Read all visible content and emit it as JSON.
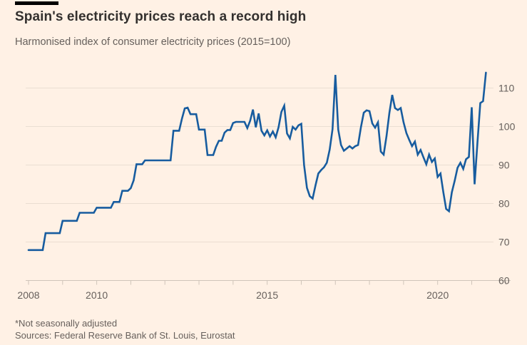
{
  "header": {
    "title": "Spain's electricity prices reach a record high",
    "subtitle": "Harmonised index of consumer electricity prices (2015=100)"
  },
  "footer": {
    "note": "*Not seasonally adjusted",
    "sources": "Sources: Federal Reserve Bank of St. Louis, Eurostat"
  },
  "colors": {
    "background": "#FFF1E5",
    "line": "#175C9F",
    "grid": "#EADED2",
    "axis": "#CFC4B9",
    "title_text": "#33302E",
    "muted_text": "#66605C",
    "topbar": "#000000"
  },
  "chart_data": {
    "type": "line",
    "title": "Spain's electricity prices reach a record high",
    "subtitle": "Harmonised index of consumer electricity prices (2015=100)",
    "frequency": "monthly",
    "x_start": "2008-01",
    "x_end": "2021-06",
    "ylim": [
      60,
      115
    ],
    "grid": true,
    "y_ticks": [
      110,
      100,
      90,
      80,
      70,
      60
    ],
    "x_tick_years": [
      2008,
      2009,
      2010,
      2011,
      2012,
      2013,
      2014,
      2015,
      2016,
      2017,
      2018,
      2019,
      2020,
      2021,
      2022
    ],
    "x_labeled_ticks": [
      {
        "year": 2008,
        "label": "2008"
      },
      {
        "year": 2010,
        "label": "2010"
      },
      {
        "year": 2015,
        "label": "2015"
      },
      {
        "year": 2020,
        "label": "2020"
      }
    ],
    "series": [
      {
        "name": "Spain harmonised index of consumer electricity prices",
        "values": [
          67.9,
          67.9,
          67.9,
          67.9,
          67.9,
          67.9,
          72.3,
          72.3,
          72.3,
          72.3,
          72.3,
          72.3,
          75.5,
          75.5,
          75.5,
          75.5,
          75.5,
          75.5,
          77.6,
          77.6,
          77.6,
          77.6,
          77.6,
          77.6,
          78.9,
          78.9,
          78.9,
          78.9,
          78.9,
          78.9,
          80.4,
          80.4,
          80.4,
          83.3,
          83.3,
          83.3,
          84.0,
          86.0,
          90.2,
          90.2,
          90.2,
          91.2,
          91.2,
          91.2,
          91.2,
          91.2,
          91.2,
          91.2,
          91.2,
          91.2,
          91.2,
          98.9,
          98.9,
          98.9,
          102.0,
          104.7,
          104.9,
          103.2,
          103.2,
          103.2,
          99.2,
          99.2,
          99.2,
          92.6,
          92.6,
          92.6,
          94.7,
          96.3,
          96.3,
          98.4,
          99.1,
          99.1,
          100.9,
          101.2,
          101.2,
          101.2,
          101.2,
          99.6,
          101.5,
          104.4,
          99.8,
          103.4,
          98.9,
          97.7,
          99.0,
          97.4,
          98.7,
          97.2,
          99.8,
          103.8,
          105.4,
          98.2,
          96.9,
          99.9,
          99.2,
          100.3,
          100.7,
          90.0,
          84.1,
          81.9,
          81.3,
          84.7,
          87.8,
          88.7,
          89.4,
          90.6,
          94.0,
          99.3,
          113.4,
          99.2,
          95.2,
          93.7,
          94.3,
          94.9,
          94.3,
          94.9,
          95.2,
          99.8,
          103.6,
          104.2,
          104.0,
          100.8,
          99.7,
          101.1,
          93.5,
          92.7,
          97.5,
          103.5,
          108.2,
          104.8,
          104.3,
          104.8,
          101.1,
          98.3,
          96.5,
          94.9,
          96.1,
          92.7,
          93.9,
          92.0,
          90.2,
          92.7,
          90.8,
          91.7,
          86.9,
          87.8,
          82.9,
          78.6,
          78.0,
          82.9,
          85.9,
          89.3,
          90.6,
          89.0,
          91.5,
          92.1,
          105.0,
          85.0,
          95.8,
          106.1,
          106.6,
          114.0
        ]
      }
    ],
    "legend": "none"
  }
}
